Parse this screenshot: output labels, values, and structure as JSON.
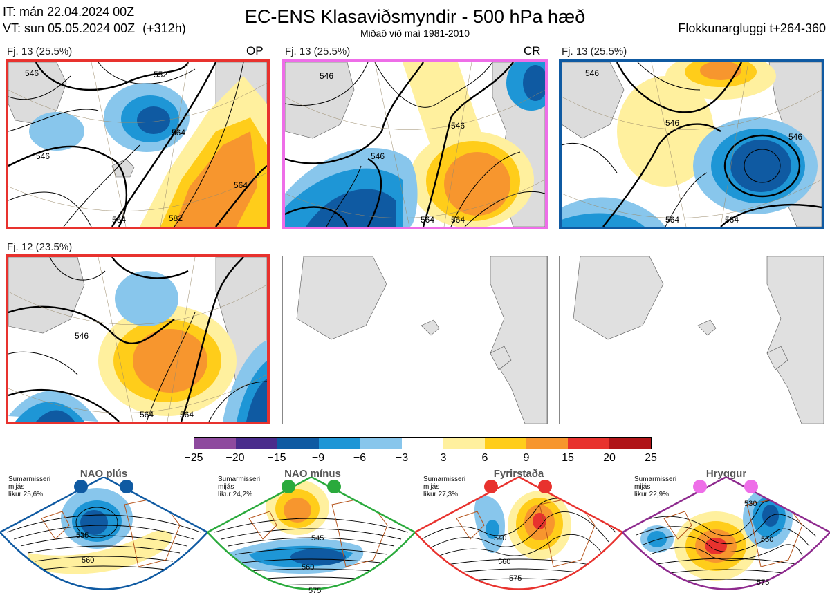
{
  "header": {
    "init_time": "IT: mán 22.04.2024 00Z",
    "valid_time": "VT: sun 05.05.2024 00Z",
    "lead": "(+312h)",
    "title": "EC-ENS Klasaviðsmyndir - 500 hPa hæð",
    "subtitle": "Miðað við maí 1981-2010",
    "window": "Flokkunargluggi t+264-360"
  },
  "panels": [
    {
      "label": "Fj. 13 (25.5%)",
      "tag": "OP",
      "border": "#e8322e"
    },
    {
      "label": "Fj. 13 (25.5%)",
      "tag": "CR",
      "border": "#ee6ee8"
    },
    {
      "label": "Fj. 13 (25.5%)",
      "tag": "",
      "border": "#0f5aa2"
    },
    {
      "label": "Fj. 12 (23.5%)",
      "tag": "",
      "border": "#e8322e"
    },
    {
      "label": "",
      "tag": "",
      "border": "#888888"
    },
    {
      "label": "",
      "tag": "",
      "border": "#888888"
    }
  ],
  "contour_labels": {
    "p1": [
      "546",
      "564",
      "546",
      "552",
      "582",
      "564",
      "564"
    ],
    "p2": [
      "546",
      "546",
      "546",
      "564",
      "564"
    ],
    "p3": [
      "546",
      "546",
      "546",
      "564",
      "564"
    ],
    "p4": [
      "546",
      "564",
      "564"
    ]
  },
  "colorbar": {
    "ticks": [
      "−25",
      "−20",
      "−15",
      "−9",
      "−6",
      "−3",
      "3",
      "6",
      "9",
      "15",
      "20",
      "25"
    ],
    "colors": [
      "#8e4a9e",
      "#4a2c8c",
      "#0f5aa2",
      "#1e96d6",
      "#88c6ec",
      "#ffffff",
      "#fff09e",
      "#ffcd1a",
      "#f7962e",
      "#e8322e",
      "#b01418"
    ]
  },
  "regimes": [
    {
      "name": "NAO plús",
      "info": [
        "Sumarmisseri",
        "mijás",
        "líkur 25,6%"
      ],
      "color": "#0f5aa2",
      "labels": [
        "535",
        "560"
      ]
    },
    {
      "name": "NAO mínus",
      "info": [
        "Sumarmisseri",
        "mijás",
        "líkur 24,2%"
      ],
      "color": "#2aaa3c",
      "labels": [
        "545",
        "560",
        "575"
      ]
    },
    {
      "name": "Fyrirstaða",
      "info": [
        "Sumarmisseri",
        "mijás",
        "líkur 27,3%"
      ],
      "color": "#e8322e",
      "labels": [
        "540",
        "560",
        "575"
      ]
    },
    {
      "name": "Hryggur",
      "info": [
        "Sumarmisseri",
        "mijás",
        "líkur 22,9%"
      ],
      "color": "#ee6ee8",
      "labels": [
        "530",
        "550",
        "575"
      ]
    }
  ]
}
